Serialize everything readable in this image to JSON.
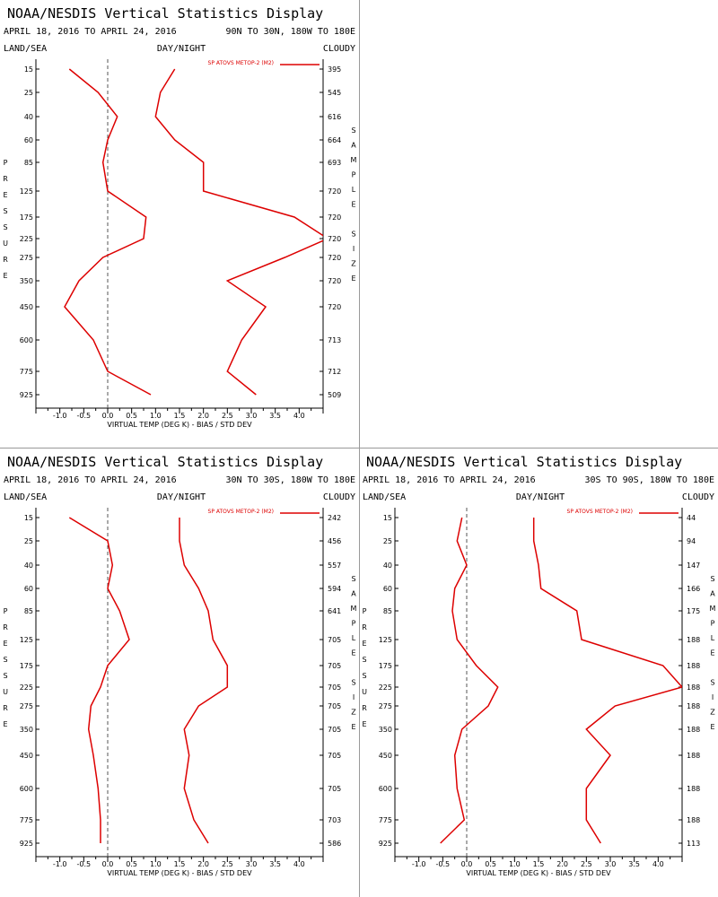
{
  "colors": {
    "series": "#dd0000",
    "axis": "#000000",
    "zero_line": "#555555"
  },
  "chart_data": [
    {
      "type": "line",
      "title": "NOAA/NESDIS Vertical Statistics Display",
      "date_range": "APRIL 18, 2016 TO APRIL 24, 2016",
      "region": "90N TO 30N, 180W TO 180E",
      "left_header": "LAND/SEA",
      "center_header": "DAY/NIGHT",
      "right_header": "CLOUDY",
      "legend": "SP ATOVS METOP-2 (M2)",
      "xlabel": "VIRTUAL TEMP (DEG K) - BIAS / STD DEV",
      "ylabel": "PRESSURE",
      "right_label": "SAMPLE SIZE",
      "xlim": [
        -1.5,
        4.5
      ],
      "xticks": [
        "-1.0",
        "-0.5",
        "0.0",
        "0.5",
        "1.0",
        "1.5",
        "2.0",
        "2.5",
        "3.0",
        "3.5",
        "4.0"
      ],
      "pressure_levels": [
        "15",
        "25",
        "40",
        "60",
        "85",
        "125",
        "175",
        "225",
        "275",
        "350",
        "450",
        "600",
        "775",
        "925"
      ],
      "sample_size": [
        "395",
        "545",
        "616",
        "664",
        "693",
        "720",
        "720",
        "720",
        "720",
        "720",
        "720",
        "713",
        "712",
        "509"
      ],
      "bias": [
        -0.8,
        -0.2,
        0.2,
        0.0,
        -0.1,
        0.0,
        0.8,
        0.75,
        -0.1,
        -0.6,
        -0.9,
        -0.3,
        0.0,
        0.9
      ],
      "std_dev": [
        1.4,
        1.1,
        1.0,
        1.4,
        2.0,
        2.0,
        3.9,
        4.6,
        3.7,
        2.5,
        3.3,
        2.8,
        2.5,
        3.1
      ]
    },
    {
      "type": "line",
      "title": "NOAA/NESDIS Vertical Statistics Display",
      "date_range": "APRIL 18, 2016 TO APRIL 24, 2016",
      "region": "30N TO 30S, 180W TO 180E",
      "left_header": "LAND/SEA",
      "center_header": "DAY/NIGHT",
      "right_header": "CLOUDY",
      "legend": "SP ATOVS METOP-2 (M2)",
      "xlabel": "VIRTUAL TEMP (DEG K) - BIAS / STD DEV",
      "ylabel": "PRESSURE",
      "right_label": "SAMPLE SIZE",
      "xlim": [
        -1.5,
        4.5
      ],
      "xticks": [
        "-1.0",
        "-0.5",
        "0.0",
        "0.5",
        "1.0",
        "1.5",
        "2.0",
        "2.5",
        "3.0",
        "3.5",
        "4.0"
      ],
      "pressure_levels": [
        "15",
        "25",
        "40",
        "60",
        "85",
        "125",
        "175",
        "225",
        "275",
        "350",
        "450",
        "600",
        "775",
        "925"
      ],
      "sample_size": [
        "242",
        "456",
        "557",
        "594",
        "641",
        "705",
        "705",
        "705",
        "705",
        "705",
        "705",
        "705",
        "703",
        "586"
      ],
      "bias": [
        -0.8,
        0.0,
        0.1,
        0.0,
        0.25,
        0.45,
        0.0,
        -0.15,
        -0.35,
        -0.4,
        -0.3,
        -0.2,
        -0.15,
        -0.15
      ],
      "std_dev": [
        1.5,
        1.5,
        1.6,
        1.9,
        2.1,
        2.2,
        2.5,
        2.5,
        1.9,
        1.6,
        1.7,
        1.6,
        1.8,
        2.1
      ]
    },
    {
      "type": "line",
      "title": "NOAA/NESDIS Vertical Statistics Display",
      "date_range": "APRIL 18, 2016 TO APRIL 24, 2016",
      "region": "30S TO 90S, 180W TO 180E",
      "left_header": "LAND/SEA",
      "center_header": "DAY/NIGHT",
      "right_header": "CLOUDY",
      "legend": "SP ATOVS METOP-2 (M2)",
      "xlabel": "VIRTUAL TEMP (DEG K) - BIAS / STD DEV",
      "ylabel": "PRESSURE",
      "right_label": "SAMPLE SIZE",
      "xlim": [
        -1.5,
        4.5
      ],
      "xticks": [
        "-1.0",
        "-0.5",
        "0.0",
        "0.5",
        "1.0",
        "1.5",
        "2.0",
        "2.5",
        "3.0",
        "3.5",
        "4.0"
      ],
      "pressure_levels": [
        "15",
        "25",
        "40",
        "60",
        "85",
        "125",
        "175",
        "225",
        "275",
        "350",
        "450",
        "600",
        "775",
        "925"
      ],
      "sample_size": [
        "44",
        "94",
        "147",
        "166",
        "175",
        "188",
        "188",
        "188",
        "188",
        "188",
        "188",
        "188",
        "188",
        "113"
      ],
      "bias": [
        -0.1,
        -0.2,
        0.0,
        -0.25,
        -0.3,
        -0.2,
        0.2,
        0.65,
        0.45,
        -0.1,
        -0.25,
        -0.2,
        -0.05,
        -0.55
      ],
      "std_dev": [
        1.4,
        1.4,
        1.5,
        1.55,
        2.3,
        2.4,
        4.1,
        4.5,
        3.1,
        2.5,
        3.0,
        2.5,
        2.5,
        2.8
      ]
    }
  ]
}
